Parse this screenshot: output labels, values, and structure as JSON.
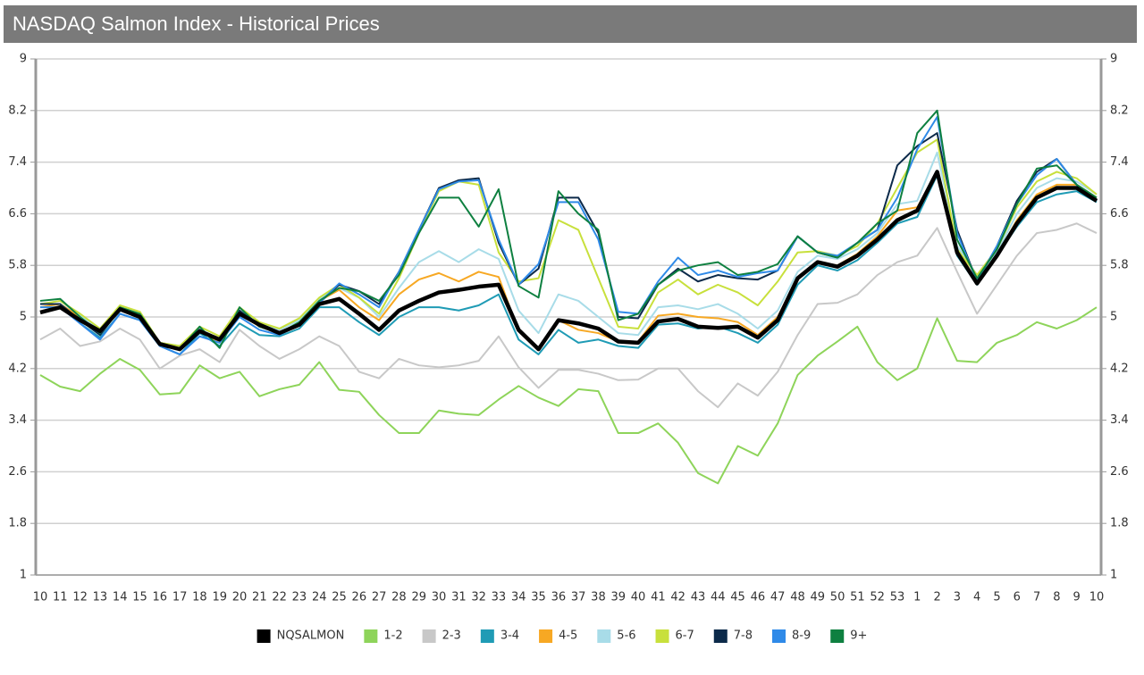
{
  "chart_data": {
    "type": "line",
    "title": "NASDAQ Salmon Index - Historical Prices",
    "categories": [
      10,
      11,
      12,
      13,
      14,
      15,
      16,
      17,
      18,
      19,
      20,
      21,
      22,
      23,
      24,
      25,
      26,
      27,
      28,
      29,
      30,
      31,
      32,
      33,
      34,
      35,
      36,
      37,
      38,
      39,
      40,
      41,
      42,
      43,
      44,
      45,
      46,
      47,
      48,
      49,
      50,
      51,
      52,
      53,
      1,
      2,
      3,
      4,
      5,
      6,
      7,
      8,
      9,
      10
    ],
    "ylim": [
      1,
      9
    ],
    "yticks": [
      1,
      1.8,
      2.6,
      3.4,
      4.2,
      5,
      5.8,
      6.6,
      7.4,
      8.2,
      9
    ],
    "y2lim": [
      1,
      9
    ],
    "y2ticks": [
      1,
      1.8,
      2.6,
      3.4,
      4.2,
      5,
      5.8,
      6.6,
      7.4,
      8.2,
      9
    ],
    "grid": true,
    "legend": "bottom",
    "series": [
      {
        "name": "NQSALMON",
        "color": "#000000",
        "values": [
          5.07,
          5.15,
          4.95,
          4.78,
          5.12,
          5.0,
          4.58,
          4.5,
          4.78,
          4.65,
          5.05,
          4.88,
          4.75,
          4.88,
          5.2,
          5.28,
          5.05,
          4.8,
          5.1,
          5.25,
          5.38,
          5.42,
          5.47,
          5.5,
          4.8,
          4.5,
          4.95,
          4.9,
          4.82,
          4.62,
          4.6,
          4.93,
          4.97,
          4.85,
          4.83,
          4.85,
          4.68,
          4.95,
          5.6,
          5.85,
          5.78,
          5.95,
          6.2,
          6.5,
          6.65,
          7.25,
          6.0,
          5.52,
          5.95,
          6.45,
          6.85,
          7.0,
          7.0,
          6.8
        ]
      },
      {
        "name": "1-2",
        "color": "#8ed45a",
        "values": [
          4.1,
          3.92,
          3.85,
          4.12,
          4.35,
          4.18,
          3.8,
          3.82,
          4.25,
          4.05,
          4.15,
          3.77,
          3.88,
          3.95,
          4.3,
          3.87,
          3.84,
          3.48,
          3.2,
          3.2,
          3.55,
          3.5,
          3.48,
          3.72,
          3.93,
          3.75,
          3.62,
          3.88,
          3.85,
          3.2,
          3.2,
          3.35,
          3.05,
          2.58,
          2.42,
          3.0,
          2.85,
          3.35,
          4.1,
          4.4,
          4.62,
          4.85,
          4.3,
          4.02,
          4.2,
          4.98,
          4.32,
          4.3,
          4.6,
          4.72,
          4.92,
          4.82,
          4.95,
          5.15
        ]
      },
      {
        "name": "2-3",
        "color": "#c8c8c8",
        "values": [
          4.65,
          4.82,
          4.55,
          4.62,
          4.82,
          4.65,
          4.2,
          4.4,
          4.5,
          4.3,
          4.8,
          4.55,
          4.35,
          4.5,
          4.7,
          4.55,
          4.15,
          4.05,
          4.35,
          4.25,
          4.22,
          4.25,
          4.32,
          4.7,
          4.22,
          3.9,
          4.18,
          4.18,
          4.12,
          4.02,
          4.03,
          4.2,
          4.2,
          3.85,
          3.6,
          3.97,
          3.78,
          4.15,
          4.72,
          5.2,
          5.22,
          5.35,
          5.65,
          5.85,
          5.95,
          6.38,
          5.7,
          5.05,
          5.5,
          5.95,
          6.3,
          6.35,
          6.45,
          6.3
        ]
      },
      {
        "name": "3-4",
        "color": "#1f9bb5",
        "values": [
          5.2,
          5.2,
          4.9,
          4.68,
          5.05,
          4.95,
          4.55,
          4.42,
          4.75,
          4.55,
          4.9,
          4.72,
          4.7,
          4.82,
          5.15,
          5.15,
          4.92,
          4.72,
          5.0,
          5.15,
          5.15,
          5.1,
          5.18,
          5.35,
          4.65,
          4.42,
          4.8,
          4.6,
          4.65,
          4.55,
          4.52,
          4.88,
          4.9,
          4.82,
          4.85,
          4.75,
          4.6,
          4.88,
          5.5,
          5.8,
          5.72,
          5.88,
          6.15,
          6.45,
          6.55,
          7.2,
          5.95,
          5.5,
          5.95,
          6.4,
          6.78,
          6.9,
          6.95,
          6.78
        ]
      },
      {
        "name": "4-5",
        "color": "#f7a823",
        "values": [
          5.15,
          5.2,
          5.0,
          4.8,
          5.12,
          5.0,
          4.6,
          4.5,
          4.8,
          4.6,
          5.05,
          4.85,
          4.75,
          4.88,
          5.25,
          5.42,
          5.15,
          4.95,
          5.35,
          5.58,
          5.68,
          5.55,
          5.7,
          5.62,
          4.78,
          4.5,
          4.95,
          4.8,
          4.75,
          4.62,
          4.62,
          5.02,
          5.05,
          5.0,
          4.98,
          4.92,
          4.72,
          5.0,
          5.6,
          5.85,
          5.8,
          5.98,
          6.25,
          6.65,
          6.7,
          7.25,
          6.05,
          5.55,
          5.95,
          6.5,
          6.9,
          7.05,
          7.05,
          6.85
        ]
      },
      {
        "name": "5-6",
        "color": "#a8dce8",
        "values": [
          5.2,
          5.25,
          5.02,
          4.8,
          5.15,
          5.05,
          4.6,
          4.55,
          4.82,
          4.65,
          5.1,
          4.9,
          4.8,
          4.95,
          5.28,
          5.45,
          5.3,
          5.0,
          5.45,
          5.85,
          6.02,
          5.85,
          6.05,
          5.9,
          5.1,
          4.75,
          5.35,
          5.25,
          5.0,
          4.75,
          4.72,
          5.15,
          5.18,
          5.12,
          5.2,
          5.05,
          4.82,
          5.1,
          5.7,
          5.95,
          5.9,
          6.05,
          6.3,
          6.75,
          6.8,
          7.55,
          6.1,
          5.65,
          6.0,
          6.6,
          7.0,
          7.15,
          7.1,
          6.9
        ]
      },
      {
        "name": "6-7",
        "color": "#c8e03c",
        "values": [
          5.2,
          5.25,
          5.05,
          4.82,
          5.18,
          5.08,
          4.6,
          4.55,
          4.85,
          4.7,
          5.15,
          4.92,
          4.82,
          4.98,
          5.3,
          5.5,
          5.3,
          5.05,
          5.6,
          6.3,
          6.95,
          7.1,
          7.05,
          6.0,
          5.55,
          5.6,
          6.5,
          6.35,
          5.6,
          4.85,
          4.82,
          5.38,
          5.58,
          5.35,
          5.5,
          5.38,
          5.18,
          5.55,
          6.0,
          6.02,
          5.95,
          6.1,
          6.45,
          7.0,
          7.55,
          7.75,
          6.05,
          5.65,
          6.05,
          6.7,
          7.1,
          7.25,
          7.15,
          6.9
        ]
      },
      {
        "name": "7-8",
        "color": "#0c2a4a",
        "values": [
          5.2,
          5.2,
          4.95,
          4.72,
          5.12,
          5.02,
          4.55,
          4.5,
          4.8,
          4.65,
          5.1,
          4.85,
          4.75,
          4.9,
          5.22,
          5.5,
          5.4,
          5.2,
          5.7,
          6.35,
          7.0,
          7.12,
          7.15,
          6.15,
          5.5,
          5.75,
          6.85,
          6.85,
          6.3,
          5.0,
          4.98,
          5.5,
          5.75,
          5.55,
          5.65,
          5.6,
          5.58,
          5.72,
          6.25,
          6.0,
          5.92,
          6.15,
          6.35,
          7.35,
          7.65,
          7.85,
          6.35,
          5.55,
          6.1,
          6.8,
          7.25,
          7.45,
          7.05,
          6.8
        ]
      },
      {
        "name": "8-9",
        "color": "#2f8ae8",
        "values": [
          5.15,
          5.15,
          4.9,
          4.65,
          5.05,
          4.95,
          4.55,
          4.42,
          4.7,
          4.6,
          5.0,
          4.8,
          4.72,
          4.88,
          5.22,
          5.52,
          5.35,
          5.15,
          5.7,
          6.35,
          6.98,
          7.1,
          7.12,
          6.2,
          5.5,
          5.82,
          6.78,
          6.78,
          6.2,
          5.08,
          5.05,
          5.55,
          5.92,
          5.65,
          5.72,
          5.62,
          5.68,
          5.72,
          6.25,
          6.0,
          5.95,
          6.15,
          6.35,
          6.85,
          7.6,
          8.1,
          6.3,
          5.55,
          6.1,
          6.75,
          7.2,
          7.45,
          7.05,
          6.8
        ]
      },
      {
        "name": "9+",
        "color": "#0e8040",
        "values": [
          5.25,
          5.28,
          5.0,
          4.75,
          5.15,
          5.05,
          4.6,
          4.5,
          4.85,
          4.52,
          5.15,
          4.85,
          4.75,
          4.92,
          5.25,
          5.45,
          5.4,
          5.25,
          5.65,
          6.3,
          6.85,
          6.85,
          6.4,
          6.98,
          5.48,
          5.3,
          6.95,
          6.6,
          6.35,
          4.95,
          5.05,
          5.5,
          5.72,
          5.8,
          5.85,
          5.65,
          5.7,
          5.82,
          6.25,
          6.0,
          5.92,
          6.15,
          6.45,
          6.65,
          7.85,
          8.2,
          6.2,
          5.6,
          6.05,
          6.75,
          7.3,
          7.35,
          7.05,
          6.85
        ]
      }
    ]
  }
}
